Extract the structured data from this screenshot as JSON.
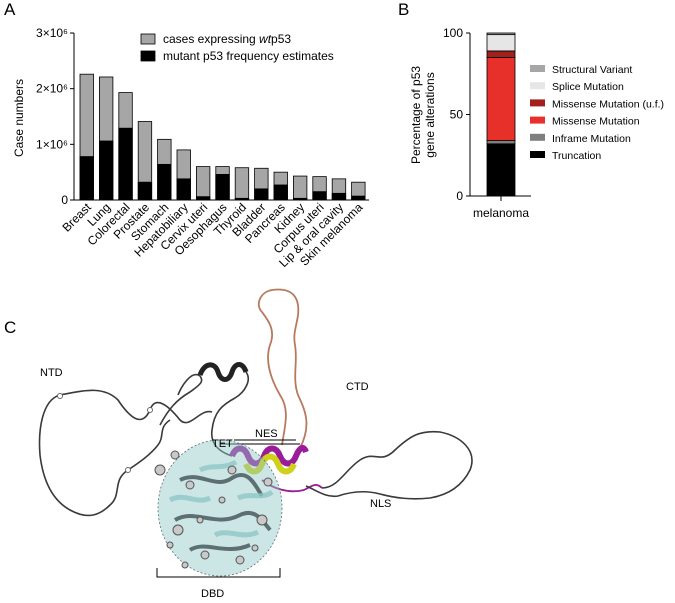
{
  "panel_labels": {
    "a": "A",
    "b": "B",
    "c": "C"
  },
  "chart_data": [
    {
      "type": "bar",
      "subtype": "overlapping",
      "ylabel": "Case numbers",
      "ylim": [
        0,
        3000000
      ],
      "yticks": [
        {
          "value": 0,
          "label": "0"
        },
        {
          "value": 1000000,
          "label": "1×10⁶"
        },
        {
          "value": 2000000,
          "label": "2×10⁶"
        },
        {
          "value": 3000000,
          "label": "3×10⁶"
        }
      ],
      "categories": [
        "Breast",
        "Lung",
        "Colorectal",
        "Prostate",
        "Stomach",
        "Hepatobiliary",
        "Cervix uteri",
        "Oesophagus",
        "Thyroid",
        "Bladder",
        "Pancreas",
        "Kidney",
        "Corpus uteri",
        "Lip & oral cavity",
        "Skin melanoma"
      ],
      "series": [
        {
          "name": "cases expressing wtp53",
          "color": "#a6a6a6",
          "values": [
            2260000,
            2210000,
            1930000,
            1410000,
            1090000,
            900000,
            600000,
            600000,
            580000,
            570000,
            500000,
            430000,
            420000,
            380000,
            320000
          ]
        },
        {
          "name": "mutant p53 frequency estimates",
          "color": "#000000",
          "values": [
            780000,
            1060000,
            1290000,
            320000,
            640000,
            380000,
            60000,
            460000,
            30000,
            200000,
            270000,
            30000,
            150000,
            120000,
            70000
          ]
        }
      ],
      "legend": [
        {
          "prefix": "cases expressing ",
          "italic": "wt",
          "suffix": "p53"
        },
        {
          "prefix": "mutant p53 frequency estimates",
          "italic": "",
          "suffix": ""
        }
      ]
    },
    {
      "type": "bar",
      "subtype": "stacked",
      "ylabel": [
        "Percentage of p53",
        "gene alterations"
      ],
      "ylim": [
        0,
        100
      ],
      "yticks": [
        {
          "value": 0,
          "label": "0"
        },
        {
          "value": 50,
          "label": "50"
        },
        {
          "value": 100,
          "label": "100"
        }
      ],
      "categories": [
        "melanoma"
      ],
      "series": [
        {
          "name": "Truncation",
          "color": "#000000",
          "values": [
            32
          ]
        },
        {
          "name": "Inframe Mutation",
          "color": "#7f7f7f",
          "values": [
            2
          ]
        },
        {
          "name": "Missense Mutation",
          "color": "#e8302a",
          "values": [
            51
          ]
        },
        {
          "name": "Missense Mutation (u.f.)",
          "color": "#a31f1c",
          "values": [
            4
          ]
        },
        {
          "name": "Splice Mutation",
          "color": "#e6e6e6",
          "values": [
            10
          ]
        },
        {
          "name": "Structural Variant",
          "color": "#a6a6a6",
          "values": [
            1
          ]
        }
      ],
      "legend_order": [
        "Structural Variant",
        "Splice Mutation",
        "Missense Mutation (u.f.)",
        "Missense Mutation",
        "Inframe Mutation",
        "Truncation"
      ]
    }
  ],
  "structure": {
    "labels": {
      "ntd": "NTD",
      "ctd": "CTD",
      "tet": "TET",
      "nes": "NES",
      "nls": "NLS",
      "dbd": "DBD"
    },
    "colors": {
      "coil": "#3a3a3a",
      "ctd_loop": "#b87a5e",
      "tet_helix": "#9b1c9b",
      "nes_helix": "#cfd11a",
      "dbd": "#8fc7c5",
      "dbd_dark": "#5c6f72"
    }
  }
}
